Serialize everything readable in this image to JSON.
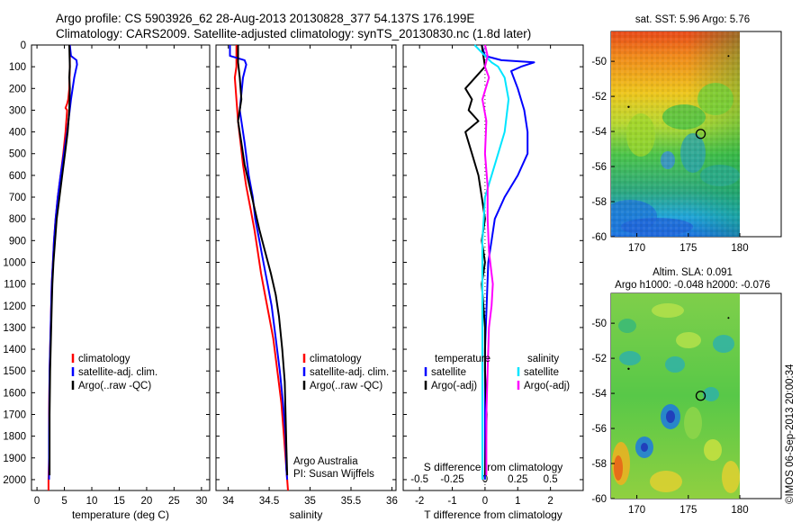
{
  "header": {
    "line1": "Argo profile: CS 5903926_62 28-Aug-2013 20130828_377 54.137S 176.199E",
    "line2": "Climatology: CARS2009. Satellite-adjusted climatology: synTS_20130830.nc (1.8d later)"
  },
  "footer_stamp": "©IMOS 06-Sep-2013 20:00:34",
  "colors": {
    "climatology": "#ff0000",
    "satellite": "#0000ff",
    "argo": "#000000",
    "argo_sal_diff": "#ff00ff",
    "sat_sal_diff": "#00e5ff"
  },
  "chart_data": [
    {
      "type": "line",
      "name": "temperature-profile",
      "xlabel": "temperature (deg C)",
      "xlim": [
        -1,
        31.5
      ],
      "ylim": [
        2050,
        0
      ],
      "xticks": [
        "0",
        "5",
        "10",
        "15",
        "20",
        "25",
        "30"
      ],
      "xtick_values": [
        0,
        5,
        10,
        15,
        20,
        25,
        30
      ],
      "yticks": [
        "0",
        "100",
        "200",
        "300",
        "400",
        "500",
        "600",
        "700",
        "800",
        "900",
        "1000",
        "1100",
        "1200",
        "1300",
        "1400",
        "1500",
        "1600",
        "1700",
        "1800",
        "1900",
        "2000"
      ],
      "ytick_values": [
        0,
        100,
        200,
        300,
        400,
        500,
        600,
        700,
        800,
        900,
        1000,
        1100,
        1200,
        1300,
        1400,
        1500,
        1600,
        1700,
        1800,
        1900,
        2000
      ],
      "legend": [
        "climatology",
        "satellite-adj. clim.",
        "Argo(..raw -QC)"
      ],
      "series": [
        {
          "name": "climatology",
          "x": [
            6.0,
            6.0,
            5.9,
            5.7,
            5.5,
            5.2,
            5.5,
            5.2,
            4.8,
            4.3,
            3.8,
            3.4,
            3.1,
            2.9,
            2.7,
            2.6,
            2.5,
            2.4,
            2.3,
            2.2,
            2.2,
            2.1,
            2.1
          ],
          "y": [
            0,
            100,
            200,
            250,
            270,
            290,
            300,
            400,
            500,
            600,
            700,
            800,
            900,
            1000,
            1100,
            1200,
            1300,
            1400,
            1500,
            1700,
            1900,
            2000,
            2050
          ]
        },
        {
          "name": "satellite-adj. clim.",
          "x": [
            6.0,
            6.2,
            7.2,
            7.3,
            6.8,
            6.2,
            5.5,
            4.9,
            4.3,
            3.8,
            3.4,
            3.1,
            2.9,
            2.7,
            2.6,
            2.5,
            2.4,
            2.3,
            2.2,
            2.2
          ],
          "y": [
            0,
            50,
            70,
            90,
            150,
            250,
            400,
            500,
            600,
            700,
            800,
            900,
            1000,
            1100,
            1200,
            1300,
            1400,
            1500,
            1800,
            2000
          ]
        },
        {
          "name": "Argo(..raw -QC)",
          "x": [
            5.9,
            6.0,
            5.9,
            6.0,
            5.9,
            5.6,
            5.1,
            4.6,
            4.1,
            3.6,
            3.3,
            3.0,
            2.8,
            2.7,
            2.6,
            2.5,
            2.4,
            2.3,
            2.3
          ],
          "y": [
            0,
            100,
            150,
            200,
            300,
            400,
            500,
            600,
            700,
            800,
            900,
            1000,
            1100,
            1200,
            1300,
            1400,
            1500,
            1700,
            1980
          ]
        }
      ]
    },
    {
      "type": "line",
      "name": "salinity-profile",
      "xlabel": "salinity",
      "xlim": [
        33.85,
        36.05
      ],
      "ylim": [
        2050,
        0
      ],
      "xticks": [
        "34",
        "34.5",
        "35",
        "35.5",
        "36"
      ],
      "xtick_values": [
        34,
        34.5,
        35,
        35.5,
        36
      ],
      "legend": [
        "climatology",
        "satellite-adj. clim.",
        "Argo(..raw -QC)"
      ],
      "annotation": [
        "Argo Australia",
        "PI: Susan Wijffels"
      ],
      "series": [
        {
          "name": "climatology",
          "x": [
            34.1,
            34.1,
            34.08,
            34.1,
            34.12,
            34.15,
            34.18,
            34.22,
            34.27,
            34.32,
            34.36,
            34.4,
            34.45,
            34.5,
            34.55,
            34.6,
            34.65,
            34.68,
            34.7,
            34.72,
            34.73
          ],
          "y": [
            0,
            100,
            150,
            250,
            350,
            450,
            550,
            650,
            750,
            850,
            950,
            1050,
            1150,
            1250,
            1350,
            1500,
            1650,
            1800,
            1900,
            2000,
            2050
          ]
        },
        {
          "name": "satellite-adj. clim.",
          "x": [
            34.02,
            34.02,
            34.2,
            34.22,
            34.18,
            34.14,
            34.2,
            34.25,
            34.3,
            34.33,
            34.38,
            34.43,
            34.48,
            34.53,
            34.58,
            34.63,
            34.67,
            34.7,
            34.71,
            34.72
          ],
          "y": [
            0,
            50,
            70,
            90,
            150,
            300,
            450,
            600,
            700,
            800,
            900,
            1000,
            1100,
            1200,
            1350,
            1500,
            1650,
            1800,
            1950,
            2000
          ]
        },
        {
          "name": "Argo(..raw -QC)",
          "x": [
            34.12,
            34.12,
            34.14,
            34.16,
            34.12,
            34.16,
            34.2,
            34.26,
            34.32,
            34.38,
            34.45,
            34.52,
            34.58,
            34.62,
            34.66,
            34.69,
            34.7,
            34.71,
            34.72
          ],
          "y": [
            0,
            80,
            150,
            250,
            350,
            450,
            550,
            650,
            750,
            850,
            950,
            1050,
            1150,
            1250,
            1400,
            1550,
            1700,
            1850,
            1980
          ]
        }
      ]
    },
    {
      "type": "line",
      "name": "difference-profile",
      "xlabel": "T difference from climatology",
      "x2label": "S difference from climatology",
      "xlim": [
        -2.5,
        3.0
      ],
      "x2lim": [
        -0.625,
        0.75
      ],
      "ylim": [
        2050,
        0
      ],
      "xticks": [
        "-2",
        "-1",
        "0",
        "1",
        "2"
      ],
      "xtick_values": [
        -2,
        -1,
        0,
        1,
        2
      ],
      "x2ticks": [
        "-0.5",
        "-0.25",
        "0",
        "0.25",
        "0.5"
      ],
      "x2tick_values": [
        -0.5,
        -0.25,
        0,
        0.25,
        0.5
      ],
      "legend_temperature": [
        "temperature",
        "satellite",
        "Argo(-adj)"
      ],
      "legend_salinity": [
        "salinity",
        "satellite",
        "Argo(-adj)"
      ],
      "series": [
        {
          "name": "temperature satellite",
          "x": [
            -0.1,
            0.0,
            0.5,
            1.5,
            1.1,
            0.8,
            1.0,
            1.2,
            1.3,
            1.3,
            1.0,
            0.6,
            0.3,
            0.2,
            0.1,
            0.05,
            0.0,
            0.0,
            0.0
          ],
          "y": [
            0,
            50,
            70,
            80,
            100,
            120,
            200,
            300,
            400,
            500,
            600,
            700,
            800,
            900,
            1000,
            1200,
            1400,
            1700,
            2000
          ]
        },
        {
          "name": "temperature Argo(-adj)",
          "x": [
            -0.1,
            0.0,
            -0.3,
            -0.6,
            -0.4,
            -0.5,
            -0.2,
            -0.6,
            -0.4,
            -0.2,
            -0.1,
            0.0,
            -0.1,
            0.0,
            -0.1,
            0.0,
            0.0,
            0.05,
            0.0
          ],
          "y": [
            0,
            100,
            150,
            200,
            250,
            300,
            350,
            400,
            500,
            600,
            700,
            800,
            900,
            1000,
            1100,
            1300,
            1500,
            1700,
            1980
          ]
        },
        {
          "name": "salinity satellite",
          "x": [
            -0.08,
            0.0,
            0.05,
            0.1,
            0.15,
            0.18,
            0.15,
            0.1,
            0.05,
            0.0,
            -0.01,
            -0.02,
            -0.02,
            -0.02,
            -0.02,
            -0.02
          ],
          "y": [
            0,
            50,
            80,
            100,
            150,
            250,
            400,
            500,
            600,
            700,
            800,
            900,
            1100,
            1400,
            1700,
            2000
          ]
        },
        {
          "name": "salinity Argo(-adj)",
          "x": [
            0.0,
            0.02,
            0.0,
            0.03,
            -0.02,
            0.01,
            0.0,
            0.02,
            0.02,
            0.03,
            0.04,
            0.06,
            0.05,
            0.03,
            0.02,
            0.01,
            0.01
          ],
          "y": [
            0,
            50,
            100,
            150,
            250,
            350,
            500,
            650,
            800,
            950,
            1000,
            1100,
            1200,
            1300,
            1500,
            1700,
            1980
          ]
        }
      ]
    },
    {
      "type": "heatmap",
      "name": "sst-map",
      "title": "sat. SST: 5.96 Argo: 5.76",
      "xlim": [
        167.5,
        180
      ],
      "ylim": [
        -60,
        -48.3
      ],
      "xticks": [
        "170",
        "175",
        "180"
      ],
      "xtick_values": [
        170,
        175,
        180
      ],
      "yticks": [
        "-50",
        "-52",
        "-54",
        "-56",
        "-58",
        "-60"
      ],
      "ytick_values": [
        -50,
        -52,
        -54,
        -56,
        -58,
        -60
      ],
      "marker": {
        "lon": 176.199,
        "lat": -54.137
      }
    },
    {
      "type": "heatmap",
      "name": "sla-map",
      "title": "Altim. SLA: 0.091",
      "subtitle": "Argo h1000: -0.048 h2000: -0.076",
      "xlim": [
        167.5,
        180
      ],
      "ylim": [
        -60,
        -48.3
      ],
      "xticks": [
        "170",
        "175",
        "180"
      ],
      "xtick_values": [
        170,
        175,
        180
      ],
      "yticks": [
        "-50",
        "-52",
        "-54",
        "-56",
        "-58",
        "-60"
      ],
      "ytick_values": [
        -50,
        -52,
        -54,
        -56,
        -58,
        -60
      ],
      "marker": {
        "lon": 176.199,
        "lat": -54.137
      }
    }
  ]
}
